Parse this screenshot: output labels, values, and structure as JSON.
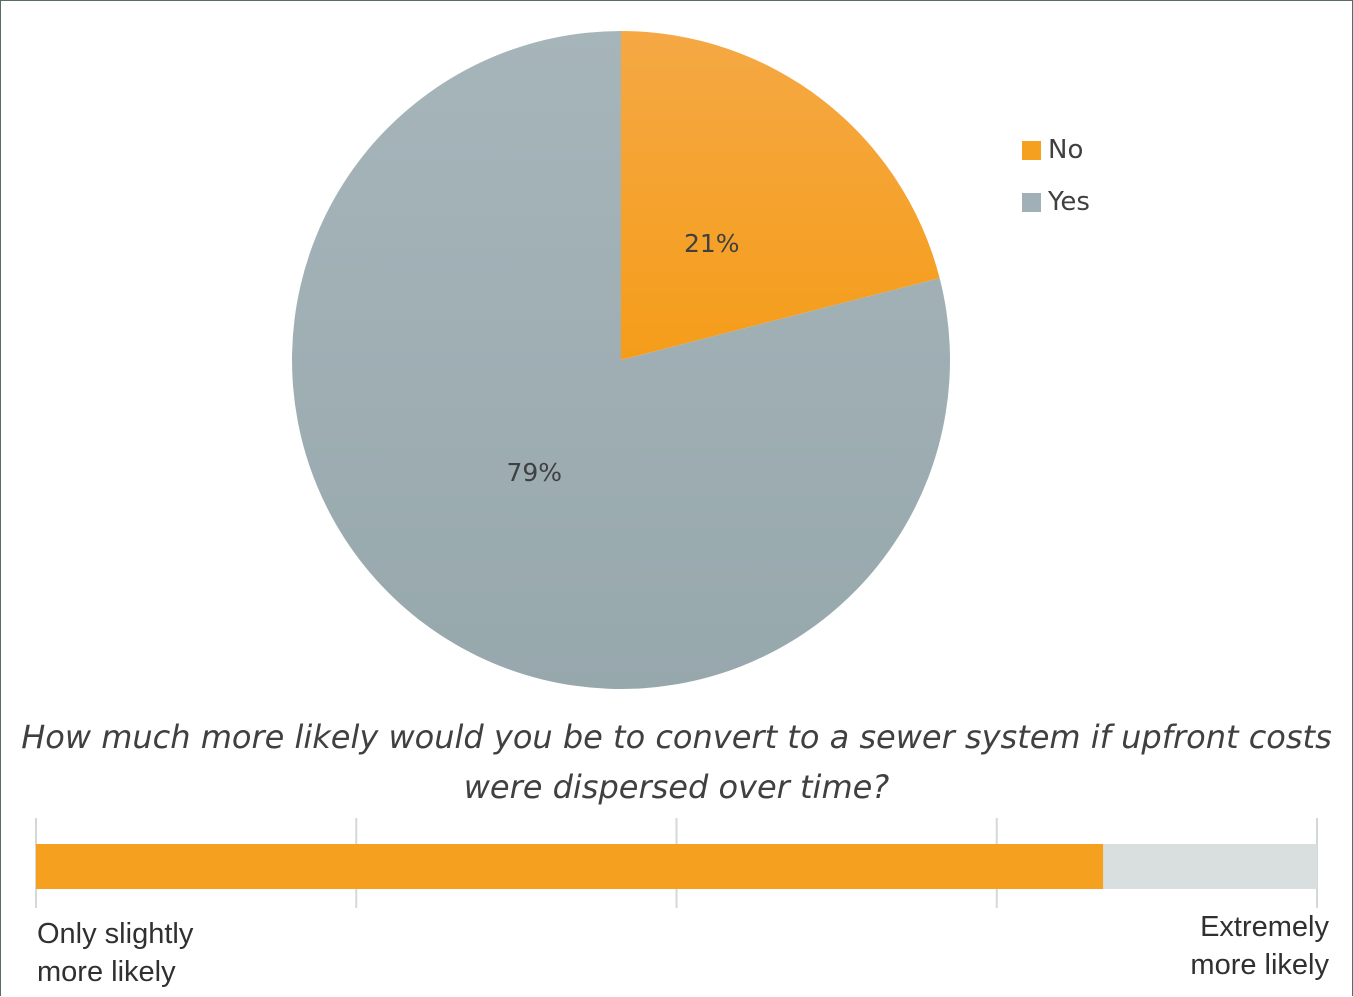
{
  "chart_data": [
    {
      "type": "pie",
      "slices": [
        {
          "label": "No",
          "value": 21,
          "display": "21%",
          "color": "#f5a01f"
        },
        {
          "label": "Yes",
          "value": 79,
          "display": "79%",
          "color": "#a0b0b6"
        }
      ],
      "legend": {
        "placement": "right",
        "items": [
          "No",
          "Yes"
        ]
      }
    },
    {
      "type": "bar",
      "title": "How much more likely would you be to convert to a sewer system if upfront costs were dispersed over time?",
      "value": 0.833,
      "fill_color": "#f5a01f",
      "track_color": "#d9dfdf",
      "min_label_lines": [
        "Only slightly",
        "more likely"
      ],
      "max_label_lines": [
        "Extremely",
        "more likely"
      ],
      "gridlines": 5
    }
  ]
}
